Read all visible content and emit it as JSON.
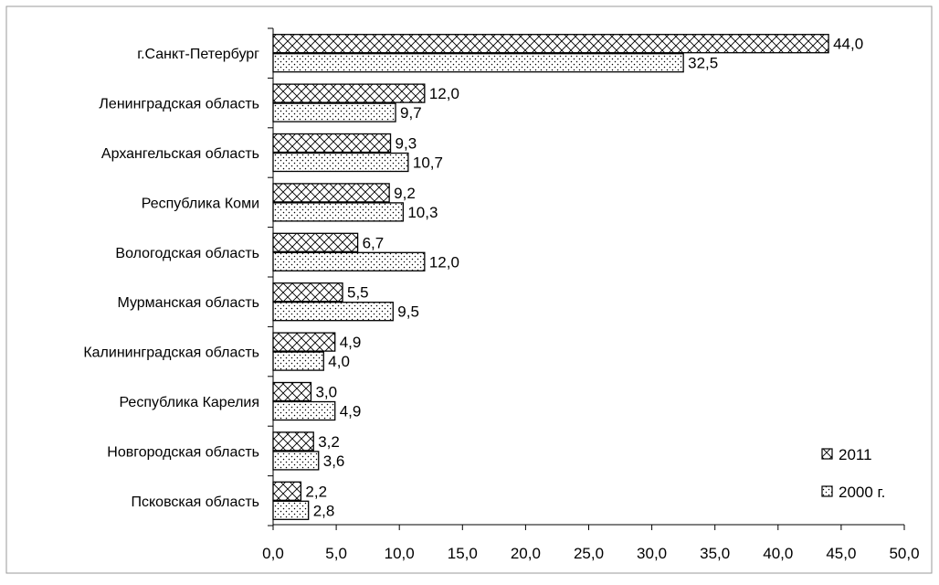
{
  "chart_data": {
    "type": "bar",
    "orientation": "horizontal",
    "categories": [
      "г.Санкт-Петербург",
      "Ленинградская область",
      "Архангельская область",
      "Республика Коми",
      "Вологодская область",
      "Мурманская область",
      "Калининградская область",
      "Республика Карелия",
      "Новгородская область",
      "Псковская область"
    ],
    "series": [
      {
        "name": "2011",
        "pattern": "crosshatch",
        "values": [
          44.0,
          12.0,
          9.3,
          9.2,
          6.7,
          5.5,
          4.9,
          3.0,
          3.2,
          2.2
        ],
        "labels": [
          "44,0",
          "12,0",
          "9,3",
          "9,2",
          "6,7",
          "5,5",
          "4,9",
          "3,0",
          "3,2",
          "2,2"
        ]
      },
      {
        "name": "2000 г.",
        "pattern": "dots",
        "values": [
          32.5,
          9.7,
          10.7,
          10.3,
          12.0,
          9.5,
          4.0,
          4.9,
          3.6,
          2.8
        ],
        "labels": [
          "32,5",
          "9,7",
          "10,7",
          "10,3",
          "12,0",
          "9,5",
          "4,0",
          "4,9",
          "3,6",
          "2,8"
        ]
      }
    ],
    "xlim": [
      0,
      50
    ],
    "xticks": [
      0,
      5,
      10,
      15,
      20,
      25,
      30,
      35,
      40,
      45,
      50
    ],
    "xtick_labels": [
      "0,0",
      "5,0",
      "10,0",
      "15,0",
      "20,0",
      "25,0",
      "30,0",
      "35,0",
      "40,0",
      "45,0",
      "50,0"
    ],
    "grid": false,
    "legend": "bottom-right",
    "title": "",
    "xlabel": "",
    "ylabel": "",
    "colors": {
      "bar_stroke": "#000000",
      "bar_fill": "#ffffff",
      "frame": "#9a9a9a"
    }
  }
}
